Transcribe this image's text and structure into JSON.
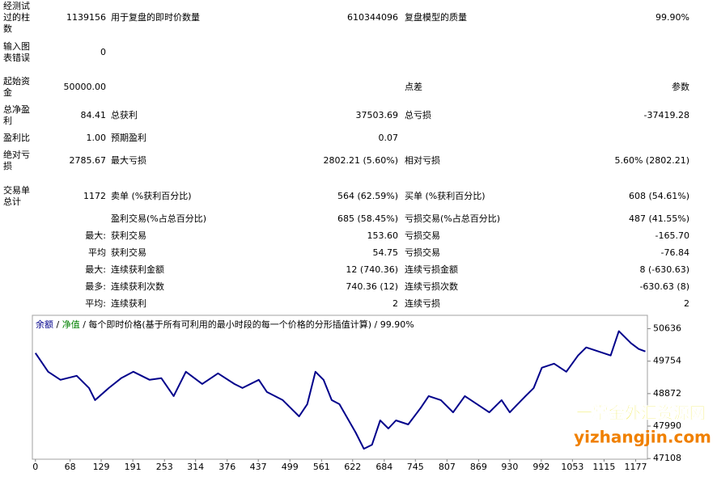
{
  "report": {
    "rows": [
      {
        "label": "经测试过的柱数",
        "value": "1139156",
        "label2": "用于复盘的即时价数量",
        "value2": "610344096",
        "label3": "复盘模型的质量",
        "value3": "99.90%"
      },
      {
        "label": "输入图表错误",
        "value": "0"
      },
      {
        "label": "起始资金",
        "value": "50000.00",
        "label3": "点差",
        "value3": "参数"
      },
      {
        "label": "总净盈利",
        "value": "84.41",
        "label2": "总获利",
        "value2": "37503.69",
        "label3": "总亏损",
        "value3": "-37419.28"
      },
      {
        "label": "盈利比",
        "value": "1.00",
        "label2": "预期盈利",
        "value2": "0.07"
      },
      {
        "label": "绝对亏损",
        "value": "2785.67",
        "label2": "最大亏损",
        "value2": "2802.21 (5.60%)",
        "label3": "相对亏损",
        "value3": "5.60% (2802.21)"
      },
      {
        "label": "交易单总计",
        "value": "1172",
        "label2": "卖单 (%获利百分比)",
        "value2": "564 (62.59%)",
        "label3": "买单 (%获利百分比)",
        "value3": "608 (54.61%)"
      },
      {
        "label2": "盈利交易(%占总百分比)",
        "value2": "685 (58.45%)",
        "label3": "亏损交易(%占总百分比)",
        "value3": "487 (41.55%)"
      },
      {
        "value": "最大:",
        "label2": "获利交易",
        "value2": "153.60",
        "label3": "亏损交易",
        "value3": "-165.70"
      },
      {
        "value": "平均",
        "label2": "获利交易",
        "value2": "54.75",
        "label3": "亏损交易",
        "value3": "-76.84"
      },
      {
        "value": "最大:",
        "label2": "连续获利金额",
        "value2": "12 (740.36)",
        "label3": "连续亏损金额",
        "value3": "8 (-630.63)"
      },
      {
        "value": "最多:",
        "label2": "连续获利次数",
        "value2": "740.36 (12)",
        "label3": "连续亏损次数",
        "value3": "-630.63 (8)"
      },
      {
        "value": "平均:",
        "label2": "连续获利",
        "value2": "2",
        "label3": "连续亏损",
        "value3": "2"
      }
    ]
  },
  "chart_data": {
    "type": "line",
    "balance_label": "余额",
    "separator": " / ",
    "equity_label": {
      "text": "净值",
      "color": "#008000"
    },
    "title": "每个即时价格(基于所有可利用的最小时段的每一个价格的分形插值计算)",
    "quality": "99.90%",
    "x": [
      0,
      25,
      49,
      81,
      105,
      117,
      144,
      168,
      192,
      224,
      247,
      271,
      295,
      327,
      358,
      390,
      406,
      438,
      454,
      485,
      517,
      533,
      549,
      565,
      581,
      596,
      628,
      644,
      660,
      676,
      692,
      707,
      731,
      755,
      771,
      795,
      819,
      842,
      866,
      890,
      914,
      930,
      961,
      977,
      993,
      1017,
      1041,
      1064,
      1080,
      1104,
      1128,
      1144,
      1168,
      1183,
      1196
    ],
    "series": [
      {
        "name": "余额",
        "color": "#00008b",
        "values": [
          49975,
          49467,
          49247,
          49357,
          49026,
          48696,
          49026,
          49291,
          49467,
          49247,
          49291,
          48806,
          49467,
          49136,
          49423,
          49136,
          49026,
          49247,
          48916,
          48696,
          48255,
          48586,
          49467,
          49247,
          48696,
          48586,
          47814,
          47373,
          47483,
          48145,
          47924,
          48145,
          48034,
          48475,
          48806,
          48696,
          48365,
          48806,
          48586,
          48365,
          48696,
          48365,
          48806,
          49026,
          49577,
          49687,
          49467,
          49908,
          50128,
          50018,
          49908,
          50570,
          50239,
          50084,
          50018
        ]
      }
    ],
    "xlim": [
      -6,
      1200
    ],
    "ylim": [
      47090,
      51000
    ],
    "xticks": [
      0,
      68,
      129,
      191,
      253,
      314,
      376,
      437,
      499,
      561,
      622,
      684,
      745,
      807,
      869,
      930,
      992,
      1053,
      1115,
      1177
    ],
    "yticks": [
      50636,
      49754,
      48872,
      47990,
      47108
    ],
    "watermark": [
      "一掌金外汇资源网",
      "yizhangjin.com"
    ]
  }
}
